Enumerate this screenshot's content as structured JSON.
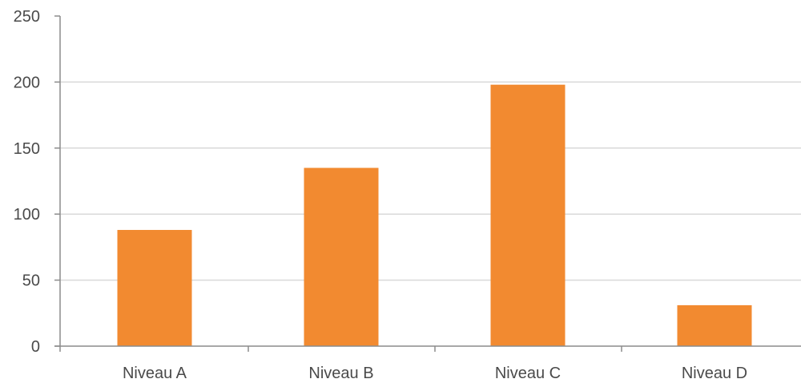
{
  "chart_data": {
    "type": "bar",
    "title": "",
    "xlabel": "",
    "ylabel": "",
    "categories": [
      "Niveau A",
      "Niveau B",
      "Niveau C",
      "Niveau D"
    ],
    "values": [
      88,
      135,
      198,
      31
    ],
    "ylim": [
      0,
      250
    ],
    "yticks": [
      0,
      50,
      100,
      150,
      200,
      250
    ],
    "ytick_labels": [
      "0",
      "50",
      "100",
      "150",
      "200",
      "250"
    ],
    "grid": true,
    "legend": "none",
    "colors": {
      "bar": "#F28A30",
      "grid": "#d9d9d9",
      "axis": "#8c8c8c",
      "text": "#4a4a4a"
    }
  }
}
